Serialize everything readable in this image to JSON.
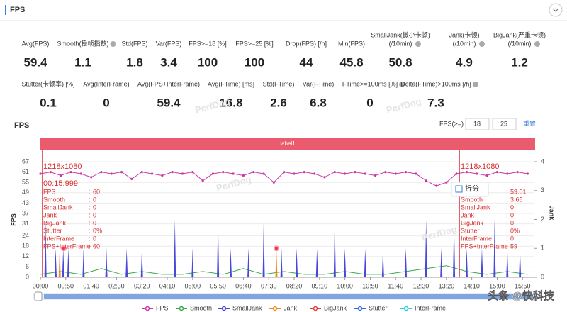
{
  "header": {
    "title": "FPS"
  },
  "stats": {
    "row1": [
      {
        "label": "Avg(FPS)",
        "value": 59.4
      },
      {
        "label": "Smooth(稳帧指数)",
        "value": 1.1,
        "help": true
      },
      {
        "label": "Std(FPS)",
        "value": 1.8
      },
      {
        "label": "Var(FPS)",
        "value": 3.4
      },
      {
        "label": "FPS>=18 [%]",
        "value": 100
      },
      {
        "label": "FPS>=25 [%]",
        "value": 100
      },
      {
        "label": "Drop(FPS) [/h]",
        "value": 44
      },
      {
        "label": "Min(FPS)",
        "value": 45.8
      },
      {
        "label": "SmallJank(微小卡顿)",
        "label2": "(/10min)",
        "value": 50.8,
        "help": true
      },
      {
        "label": "Jank(卡顿)",
        "label2": "(/10min)",
        "value": 4.9,
        "help": true
      },
      {
        "label": "BigJank(严重卡顿)",
        "label2": "(/10min)",
        "value": 1.2,
        "help": true
      }
    ],
    "row2": [
      {
        "label": "Stutter(卡顿率) [%]",
        "value": 0.1
      },
      {
        "label": "Avg(InterFrame)",
        "value": 0
      },
      {
        "label": "Avg(FPS+InterFrame)",
        "value": 59.4
      },
      {
        "label": "Avg(FTime) [ms]",
        "value": 16.8
      },
      {
        "label": "Std(FTime)",
        "value": 2.6
      },
      {
        "label": "Var(FTime)",
        "value": 6.8
      },
      {
        "label": "FTime>=100ms [%]",
        "value": 0,
        "help": true
      },
      {
        "label": "Delta(FTime)>100ms [/h]",
        "value": 7.3,
        "help": true
      }
    ]
  },
  "watermark": "PerfDog",
  "source_watermark": "头条 @快科技",
  "chart_data": {
    "type": "line",
    "title": "FPS",
    "threshold_label": "FPS(>=)",
    "thresholds": [
      18,
      25
    ],
    "reset_label": "重置",
    "band_label": "label1",
    "ylabel": "FPS",
    "y2label": "Jank",
    "xlim": [
      0,
      972
    ],
    "ylim": [
      0,
      67
    ],
    "y2lim": [
      0,
      4
    ],
    "yticks": [
      0,
      6,
      12,
      18,
      24,
      31,
      37,
      43,
      49,
      55,
      61,
      67
    ],
    "y2ticks": [
      0,
      1,
      2,
      3,
      4
    ],
    "grid": true,
    "xticks": [
      {
        "value": 0,
        "label": "00:00"
      },
      {
        "value": 50,
        "label": "00:50"
      },
      {
        "value": 100,
        "label": "01:40"
      },
      {
        "value": 150,
        "label": "02:30"
      },
      {
        "value": 200,
        "label": "03:20"
      },
      {
        "value": 250,
        "label": "04:10"
      },
      {
        "value": 300,
        "label": "05:00"
      },
      {
        "value": 350,
        "label": "05:50"
      },
      {
        "value": 400,
        "label": "06:40"
      },
      {
        "value": 450,
        "label": "07:30"
      },
      {
        "value": 500,
        "label": "08:20"
      },
      {
        "value": 550,
        "label": "09:10"
      },
      {
        "value": 600,
        "label": "10:00"
      },
      {
        "value": 650,
        "label": "10:50"
      },
      {
        "value": 700,
        "label": "11:40"
      },
      {
        "value": 750,
        "label": "12:30"
      },
      {
        "value": 800,
        "label": "13:20"
      },
      {
        "value": 850,
        "label": "14:10"
      },
      {
        "value": 900,
        "label": "15:00"
      },
      {
        "value": 950,
        "label": "15:50"
      }
    ],
    "series": [
      {
        "name": "FPS",
        "color": "#c837a8",
        "style": "line",
        "x": [
          0,
          20,
          40,
          60,
          80,
          100,
          120,
          140,
          160,
          180,
          200,
          220,
          240,
          260,
          280,
          300,
          320,
          340,
          360,
          380,
          400,
          420,
          440,
          460,
          480,
          500,
          520,
          540,
          560,
          580,
          600,
          620,
          640,
          660,
          680,
          700,
          720,
          740,
          760,
          780,
          800,
          820,
          840,
          860,
          880,
          900,
          920,
          940,
          960
        ],
        "values": [
          60,
          61,
          59,
          61,
          60,
          58,
          61,
          60,
          61,
          57,
          61,
          60,
          59,
          61,
          60,
          61,
          56,
          60,
          61,
          60,
          59,
          61,
          60,
          55,
          61,
          60,
          61,
          60,
          58,
          61,
          60,
          61,
          60,
          59,
          61,
          60,
          61,
          60,
          56,
          53,
          55,
          60,
          61,
          60,
          59,
          61,
          60,
          61,
          60
        ]
      },
      {
        "name": "Smooth",
        "color": "#3aa64a",
        "style": "line",
        "axis": "y2",
        "x": [
          0,
          40,
          80,
          120,
          160,
          200,
          240,
          280,
          320,
          360,
          400,
          440,
          480,
          520,
          560,
          600,
          640,
          680,
          720,
          760,
          800,
          840,
          880,
          920,
          960
        ],
        "values": [
          0.1,
          0.2,
          0.1,
          0.3,
          0.1,
          0.2,
          0.1,
          0.1,
          0.2,
          0.1,
          0.3,
          0.1,
          0.2,
          0.1,
          0.1,
          0.2,
          0.1,
          0.1,
          0.2,
          0.3,
          0.4,
          0.2,
          0.1,
          0.2,
          0.1
        ]
      },
      {
        "name": "SmallJank",
        "color": "#4848d8",
        "style": "spike",
        "axis": "y2",
        "x": [
          10,
          30,
          45,
          55,
          85,
          130,
          170,
          200,
          265,
          300,
          350,
          375,
          410,
          440,
          475,
          505,
          545,
          580,
          600,
          640,
          675,
          720,
          760,
          790,
          815,
          840,
          870,
          895,
          920,
          945
        ],
        "values": [
          2,
          1,
          1,
          1,
          1,
          1,
          1,
          1,
          2,
          1,
          2,
          1,
          1,
          2,
          1,
          1,
          1,
          2,
          1,
          1,
          1,
          1,
          2,
          1,
          2,
          1,
          1,
          2,
          1,
          1
        ]
      },
      {
        "name": "Jank",
        "color": "#f08a1e",
        "style": "spike",
        "axis": "y2",
        "x": [
          38,
          465
        ],
        "values": [
          1,
          1
        ]
      },
      {
        "name": "BigJank",
        "color": "#e83a3a",
        "style": "dot",
        "axis": "y2",
        "x": [
          46,
          465
        ],
        "values": [
          1,
          1
        ]
      },
      {
        "name": "Stutter",
        "color": "#3a6fd8",
        "style": "line",
        "axis": "y2"
      },
      {
        "name": "InterFrame",
        "color": "#3cc8d8",
        "style": "line",
        "axis": "y2"
      }
    ],
    "tooltips": [
      {
        "resolution": "1218x1080",
        "time": "00:15.999",
        "sep": ":",
        "rows": [
          {
            "label": "FPS",
            "value": "60"
          },
          {
            "label": "Smooth",
            "value": "0"
          },
          {
            "label": "SmallJank",
            "value": "0"
          },
          {
            "label": "Jank",
            "value": "0"
          },
          {
            "label": "BigJank",
            "value": "0"
          },
          {
            "label": "Stutter",
            "value": "0%"
          },
          {
            "label": "InterFrame",
            "value": "0"
          },
          {
            "label": "FPS+InterFrame",
            "value": "60"
          }
        ]
      },
      {
        "resolution": "1218x1080",
        "sep": ":",
        "rows": [
          {
            "label": "FPS",
            "value": "59.01"
          },
          {
            "label": "Smooth",
            "value": "3.65"
          },
          {
            "label": "SmallJank",
            "value": "0"
          },
          {
            "label": "Jank",
            "value": "0"
          },
          {
            "label": "BigJank",
            "value": "0"
          },
          {
            "label": "Stutter",
            "value": "0%"
          },
          {
            "label": "InterFrame",
            "value": "0"
          },
          {
            "label": "FPS+InterFrame",
            "value": "59"
          }
        ]
      }
    ],
    "split_label": "拆分"
  }
}
